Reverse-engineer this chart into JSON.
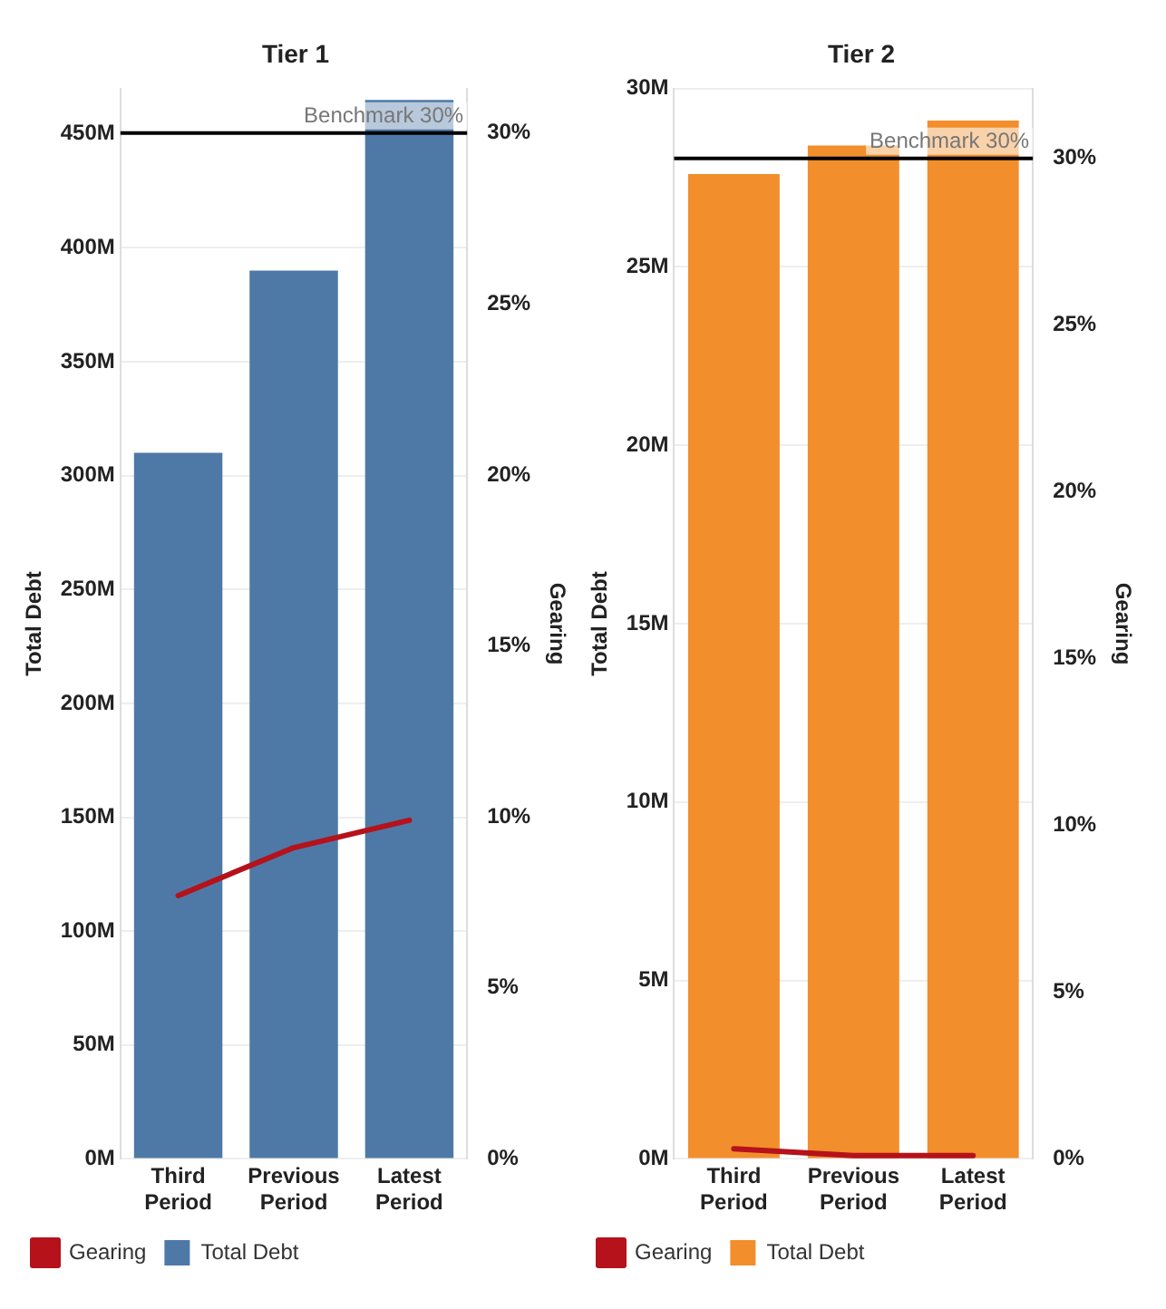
{
  "chart_data": [
    {
      "type": "bar",
      "title": "Tier 1",
      "categories": [
        "Third Period",
        "Previous Period",
        "Latest Period"
      ],
      "ylabel": "Total Debt",
      "y2label": "Gearing",
      "series": [
        {
          "name": "Gearing",
          "type": "line",
          "axis": "y2",
          "color": "#b5121b",
          "values": [
            7.7,
            9.1,
            9.9
          ]
        },
        {
          "name": "Total Debt",
          "color": "#4e79a7",
          "values": [
            310,
            390,
            465
          ]
        }
      ],
      "ylim": [
        0,
        470
      ],
      "yticks": [
        {
          "value": 0,
          "label": "0M"
        },
        {
          "value": 50,
          "label": "50M"
        },
        {
          "value": 100,
          "label": "100M"
        },
        {
          "value": 150,
          "label": "150M"
        },
        {
          "value": 200,
          "label": "200M"
        },
        {
          "value": 250,
          "label": "250M"
        },
        {
          "value": 300,
          "label": "300M"
        },
        {
          "value": 350,
          "label": "350M"
        },
        {
          "value": 400,
          "label": "400M"
        },
        {
          "value": 450,
          "label": "450M"
        }
      ],
      "y2lim": [
        0,
        31.3
      ],
      "y2ticks": [
        {
          "value": 0,
          "label": "0%"
        },
        {
          "value": 5,
          "label": "5%"
        },
        {
          "value": 10,
          "label": "10%"
        },
        {
          "value": 15,
          "label": "15%"
        },
        {
          "value": 20,
          "label": "20%"
        },
        {
          "value": 25,
          "label": "25%"
        },
        {
          "value": 30,
          "label": "30%"
        }
      ],
      "ref_lines": [
        {
          "axis": "y2",
          "value": 30,
          "label": "Benchmark 30%",
          "color": "#000000"
        }
      ],
      "grid": "y",
      "legend": "bottom left"
    },
    {
      "type": "bar",
      "title": "Tier 2",
      "categories": [
        "Third Period",
        "Previous Period",
        "Latest Period"
      ],
      "ylabel": "Total Debt",
      "y2label": "Gearing",
      "series": [
        {
          "name": "Gearing",
          "type": "line",
          "axis": "y2",
          "color": "#b5121b",
          "values": [
            0.3,
            0.1,
            0.1
          ]
        },
        {
          "name": "Total Debt",
          "color": "#f28e2b",
          "values": [
            27.6,
            28.4,
            29.1
          ]
        }
      ],
      "ylim": [
        0,
        30
      ],
      "yticks": [
        {
          "value": 0,
          "label": "0M"
        },
        {
          "value": 5,
          "label": "5M"
        },
        {
          "value": 10,
          "label": "10M"
        },
        {
          "value": 15,
          "label": "15M"
        },
        {
          "value": 20,
          "label": "20M"
        },
        {
          "value": 25,
          "label": "25M"
        },
        {
          "value": 30,
          "label": "30M"
        }
      ],
      "y2lim": [
        0,
        32.1
      ],
      "y2ticks": [
        {
          "value": 0,
          "label": "0%"
        },
        {
          "value": 5,
          "label": "5%"
        },
        {
          "value": 10,
          "label": "10%"
        },
        {
          "value": 15,
          "label": "15%"
        },
        {
          "value": 20,
          "label": "20%"
        },
        {
          "value": 25,
          "label": "25%"
        },
        {
          "value": 30,
          "label": "30%"
        }
      ],
      "ref_lines": [
        {
          "axis": "y2",
          "value": 30,
          "label": "Benchmark 30%",
          "color": "#000000"
        }
      ],
      "grid": "y",
      "legend": "bottom left"
    }
  ]
}
